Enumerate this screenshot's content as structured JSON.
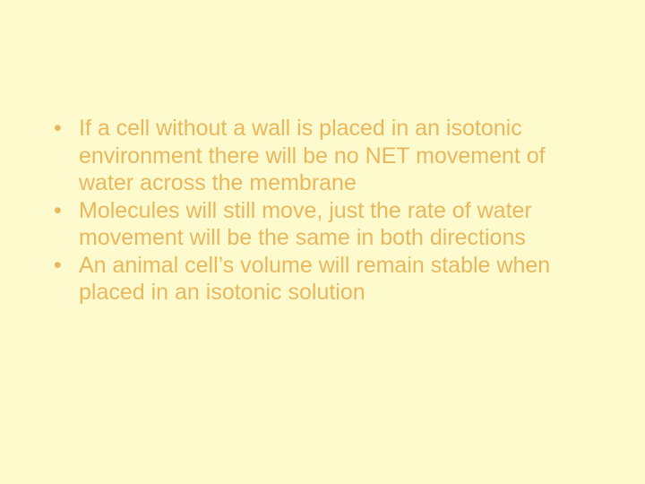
{
  "slide": {
    "background_color": "#fdfacd",
    "text_color": "#eab75d",
    "font_family": "Arial, Helvetica, sans-serif",
    "font_size_pt": 19,
    "bullets": [
      "If a cell without a wall is placed in an isotonic environment there will be no NET movement of water across the membrane",
      "Molecules will still move, just the rate of water movement will be the same in both directions",
      "An animal cell’s volume will remain stable when placed in an isotonic solution"
    ]
  }
}
